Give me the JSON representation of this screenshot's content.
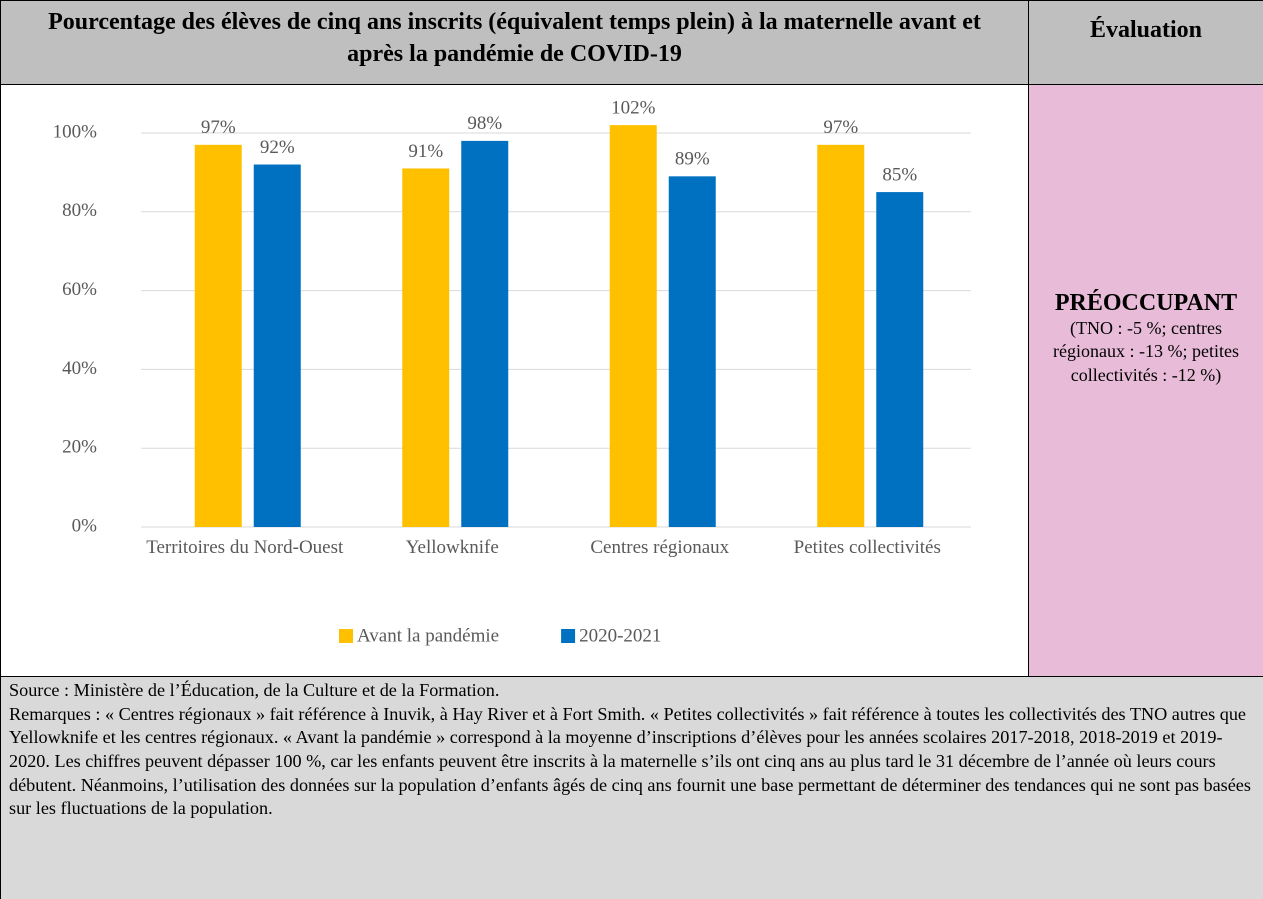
{
  "header": {
    "title": "Pourcentage des élèves de cinq ans inscrits (équivalent temps plein) à la maternelle avant et après la pandémie de COVID-19",
    "evaluation_heading": "Évaluation"
  },
  "chart_data": {
    "type": "bar",
    "categories": [
      "Territoires du Nord-Ouest",
      "Yellowknife",
      "Centres régionaux",
      "Petites collectivités"
    ],
    "series": [
      {
        "name": "Avant la pandémie",
        "color": "#ffc000",
        "values": [
          97,
          91,
          102,
          97
        ],
        "value_labels": [
          "97%",
          "91%",
          "102%",
          "97%"
        ]
      },
      {
        "name": "2020-2021",
        "color": "#0070c0",
        "values": [
          92,
          98,
          89,
          85
        ],
        "value_labels": [
          "92%",
          "98%",
          "89%",
          "85%"
        ]
      }
    ],
    "ylim": [
      0,
      100
    ],
    "yticks": [
      {
        "value": 0,
        "label": "0%"
      },
      {
        "value": 20,
        "label": "20%"
      },
      {
        "value": 40,
        "label": "40%"
      },
      {
        "value": 60,
        "label": "60%"
      },
      {
        "value": 80,
        "label": "80%"
      },
      {
        "value": 100,
        "label": "100%"
      }
    ],
    "grid": true,
    "legend": "bottom"
  },
  "evaluation": {
    "rating": "PRÉOCCUPANT",
    "details": "(TNO : -5 %; centres régionaux : -13 %; petites collectivités : -12 %)"
  },
  "notes": {
    "source": "Source : Ministère de l’Éducation, de la Culture et de la Formation.",
    "remarks": "Remarques : « Centres régionaux » fait référence à Inuvik, à Hay River et à Fort Smith. « Petites collectivités » fait référence à toutes les collectivités des TNO autres que Yellowknife et les centres régionaux. « Avant la pandémie » correspond à la moyenne d’inscriptions d’élèves pour les années scolaires 2017-2018, 2018-2019 et 2019-2020. Les chiffres peuvent dépasser 100 %, car les enfants peuvent être inscrits à la maternelle s’ils ont cinq ans au plus tard le 31 décembre de l’année où leurs cours débutent. Néanmoins, l’utilisation des données sur la population d’enfants âgés de cinq ans fournit une base permettant de déterminer des tendances qui ne sont pas basées sur les fluctuations de la population."
  }
}
